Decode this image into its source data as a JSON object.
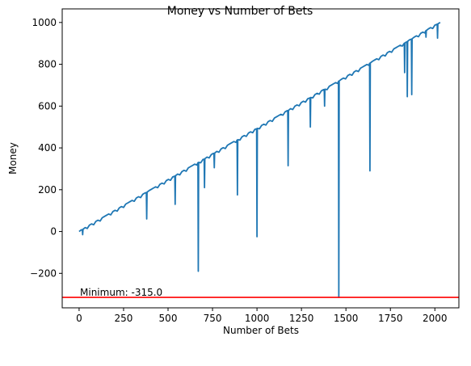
{
  "chart_data": {
    "type": "line",
    "title": "Money vs Number of Bets",
    "xlabel": "Number of Bets",
    "ylabel": "Money",
    "xlim": [
      -95,
      2135
    ],
    "ylim": [
      -365,
      1065
    ],
    "xticks": [
      0,
      250,
      500,
      750,
      1000,
      1250,
      1500,
      1750,
      2000
    ],
    "yticks": [
      -200,
      0,
      200,
      400,
      600,
      800,
      1000
    ],
    "grid": false,
    "trend": [
      [
        0,
        0
      ],
      [
        2030,
        1000
      ]
    ],
    "dips": [
      [
        20,
        -15
      ],
      [
        380,
        60
      ],
      [
        540,
        130
      ],
      [
        670,
        -190
      ],
      [
        705,
        210
      ],
      [
        760,
        305
      ],
      [
        890,
        175
      ],
      [
        1000,
        -25
      ],
      [
        1175,
        315
      ],
      [
        1300,
        500
      ],
      [
        1380,
        600
      ],
      [
        1460,
        -315
      ],
      [
        1635,
        290
      ],
      [
        1830,
        760
      ],
      [
        1845,
        645
      ],
      [
        1870,
        655
      ],
      [
        1950,
        930
      ],
      [
        2015,
        925
      ]
    ],
    "series": [
      {
        "color": "#1f77b4"
      }
    ],
    "hline": {
      "y": -315,
      "color": "#ff0000"
    },
    "annotation": {
      "text": "Minimum: -315.0",
      "x": 5,
      "y": -315
    }
  }
}
